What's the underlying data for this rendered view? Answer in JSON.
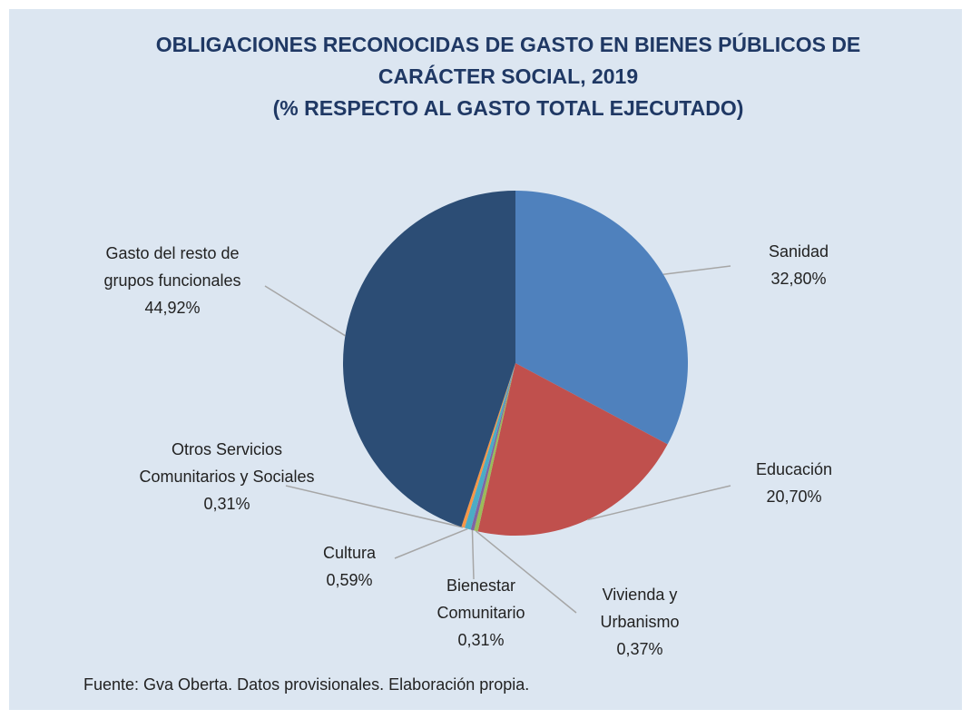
{
  "chart_data": {
    "type": "pie",
    "title": "OBLIGACIONES RECONOCIDAS DE GASTO EN BIENES PÚBLICOS DE CARÁCTER SOCIAL, 2019",
    "subtitle": "(% RESPECTO AL GASTO TOTAL EJECUTADO)",
    "categories": [
      "Sanidad",
      "Educación",
      "Vivienda y Urbanismo",
      "Bienestar Comunitario",
      "Cultura",
      "Otros Servicios Comunitarios y Sociales",
      "Gasto del resto de grupos funcionales"
    ],
    "values": [
      32.8,
      20.7,
      0.37,
      0.31,
      0.59,
      0.31,
      44.92
    ],
    "value_labels": [
      "32,80%",
      "20,70%",
      "0,37%",
      "0,31%",
      "0,59%",
      "0,31%",
      "44,92%"
    ],
    "colors": [
      "#4f81bd",
      "#c0504d",
      "#9bbb59",
      "#8064a2",
      "#4bacc6",
      "#f79646",
      "#2c4d75"
    ],
    "source": "Fuente: Gva Oberta. Datos provisionales. Elaboración propia."
  }
}
